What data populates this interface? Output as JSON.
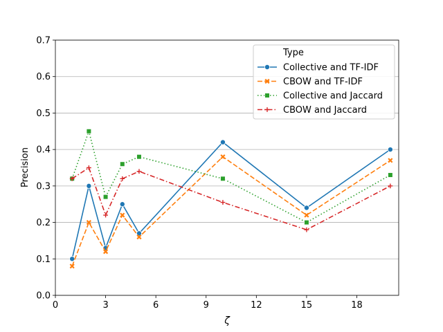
{
  "chart_data": {
    "type": "line",
    "title": "",
    "xlabel": "ζ",
    "ylabel": "Precision",
    "xlim": [
      0,
      20.5
    ],
    "ylim": [
      0,
      0.7
    ],
    "x_ticks": [
      0,
      3,
      6,
      9,
      12,
      15,
      18
    ],
    "y_ticks": [
      0.0,
      0.1,
      0.2,
      0.3,
      0.4,
      0.5,
      0.6,
      0.7
    ],
    "grid": "horizontal",
    "legend": {
      "title": "Type",
      "position": "top-right"
    },
    "x": [
      1,
      2,
      3,
      4,
      5,
      10,
      15,
      20
    ],
    "series": [
      {
        "name": "Collective and TF-IDF",
        "color": "#1f77b4",
        "dash": "solid",
        "marker": "circle",
        "values": [
          0.1,
          0.3,
          0.13,
          0.25,
          0.17,
          0.42,
          0.24,
          0.4
        ]
      },
      {
        "name": "CBOW and TF-IDF",
        "color": "#ff7f0e",
        "dash": "dashed",
        "marker": "x",
        "values": [
          0.08,
          0.2,
          0.12,
          0.22,
          0.16,
          0.38,
          0.22,
          0.37
        ]
      },
      {
        "name": "Collective and Jaccard",
        "color": "#2ca02c",
        "dash": "dotted",
        "marker": "square",
        "values": [
          0.32,
          0.45,
          0.27,
          0.36,
          0.38,
          0.32,
          0.2,
          0.33
        ]
      },
      {
        "name": "CBOW and Jaccard",
        "color": "#d62728",
        "dash": "dashdot",
        "marker": "plus",
        "values": [
          0.32,
          0.35,
          0.22,
          0.32,
          0.34,
          0.255,
          0.18,
          0.3
        ]
      }
    ]
  }
}
